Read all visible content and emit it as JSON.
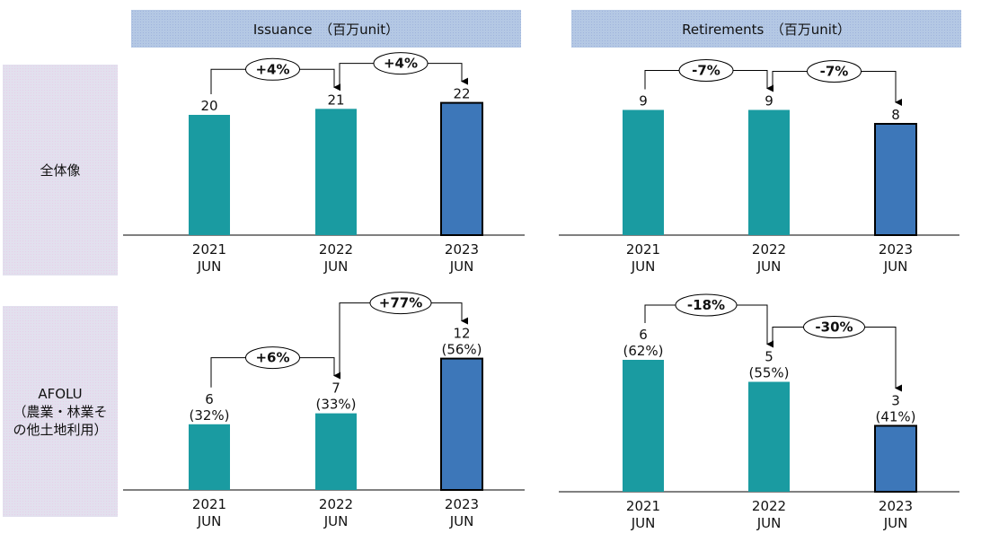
{
  "headers": {
    "issuance": "Issuance　（百万unit）",
    "retirements": "Retirements　（百万unit）"
  },
  "rows": {
    "total": "全体像",
    "afolu": "AFOLU\n（農業・林業そ\nの他土地利用）"
  },
  "colors": {
    "past_bar": "#1a9ba1",
    "latest_bar": "#3d77b9",
    "header_bg": "#b4c8e4",
    "row_bg": "#e2e0ee"
  },
  "chart_data": [
    {
      "type": "bar",
      "name": "issuance-total",
      "categories": [
        "2021 JUN",
        "2022 JUN",
        "2023 JUN"
      ],
      "values": [
        20,
        21,
        22
      ],
      "value_labels": [
        "20",
        "21",
        "22"
      ],
      "share_labels": [],
      "changes": [
        "+4%",
        "+4%"
      ]
    },
    {
      "type": "bar",
      "name": "retirements-total",
      "categories": [
        "2021 JUN",
        "2022 JUN",
        "2023 JUN"
      ],
      "values": [
        9,
        9,
        8
      ],
      "value_labels": [
        "9",
        "9",
        "8"
      ],
      "share_labels": [],
      "changes": [
        "-7%",
        "-7%"
      ]
    },
    {
      "type": "bar",
      "name": "issuance-afolu",
      "categories": [
        "2021 JUN",
        "2022 JUN",
        "2023 JUN"
      ],
      "values": [
        6,
        7,
        12
      ],
      "value_labels": [
        "6",
        "7",
        "12"
      ],
      "share_labels": [
        "(32%)",
        "(33%)",
        "(56%)"
      ],
      "changes": [
        "+6%",
        "+77%"
      ]
    },
    {
      "type": "bar",
      "name": "retirements-afolu",
      "categories": [
        "2021 JUN",
        "2022 JUN",
        "2023 JUN"
      ],
      "values": [
        6,
        5,
        3
      ],
      "value_labels": [
        "6",
        "5",
        "3"
      ],
      "share_labels": [
        "(62%)",
        "(55%)",
        "(41%)"
      ],
      "changes": [
        "-18%",
        "-30%"
      ]
    }
  ]
}
